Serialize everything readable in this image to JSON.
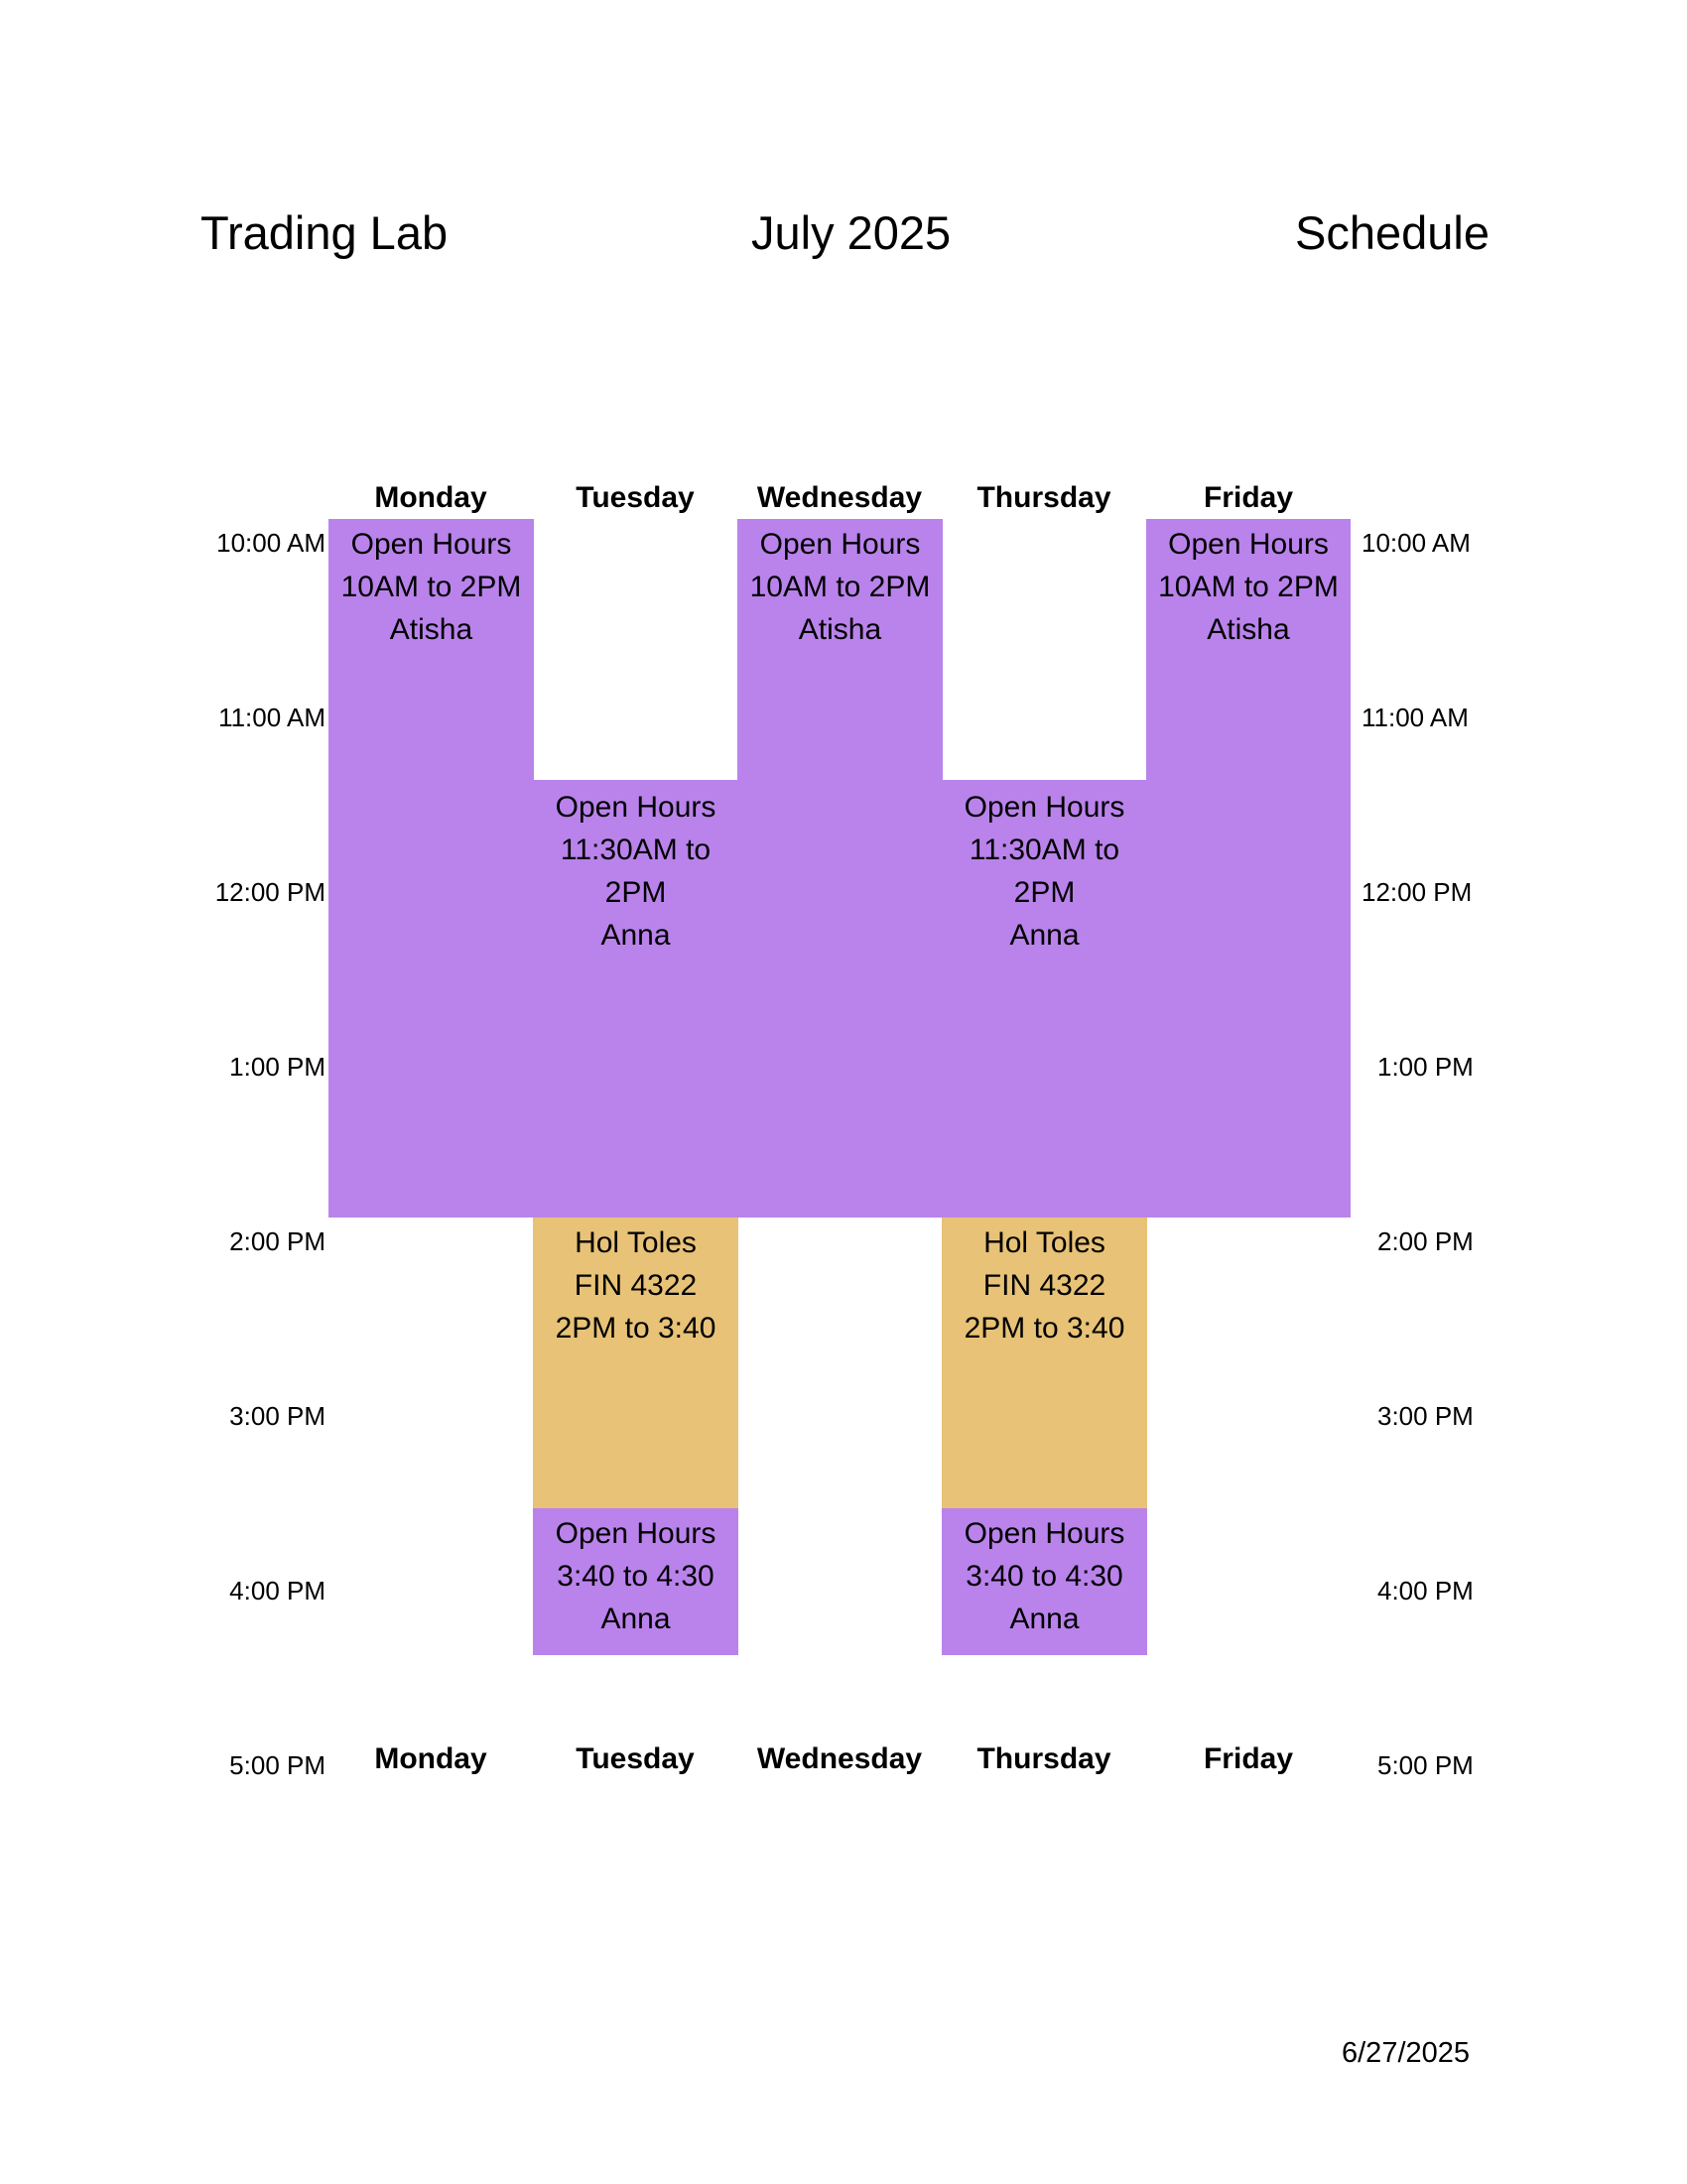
{
  "header": {
    "left": "Trading Lab",
    "center": "July 2025",
    "right": "Schedule"
  },
  "days": [
    "Monday",
    "Tuesday",
    "Wednesday",
    "Thursday",
    "Friday"
  ],
  "times": [
    "10:00 AM",
    "11:00 AM",
    "12:00 PM",
    "1:00 PM",
    "2:00 PM",
    "3:00 PM",
    "4:00 PM",
    "5:00 PM"
  ],
  "colors": {
    "open_hours": "#b983eb",
    "class": "#e7c277"
  },
  "events": {
    "mon_open": [
      "Open Hours",
      "10AM to 2PM",
      "Atisha"
    ],
    "tue_open_midday": [
      "Open Hours",
      "11:30AM to",
      "2PM",
      "Anna"
    ],
    "wed_open": [
      "Open Hours",
      "10AM to 2PM",
      "Atisha"
    ],
    "thu_open_midday": [
      "Open Hours",
      "11:30AM to",
      "2PM",
      "Anna"
    ],
    "fri_open": [
      "Open Hours",
      "10AM to 2PM",
      "Atisha"
    ],
    "tue_class": [
      "Hol Toles",
      "FIN 4322",
      "2PM to 3:40"
    ],
    "thu_class": [
      "Hol Toles",
      "FIN 4322",
      "2PM to 3:40"
    ],
    "tue_open_late": [
      "Open Hours",
      "3:40 to 4:30",
      "Anna"
    ],
    "thu_open_late": [
      "Open Hours",
      "3:40 to 4:30",
      "Anna"
    ]
  },
  "footer": {
    "date": "6/27/2025"
  }
}
